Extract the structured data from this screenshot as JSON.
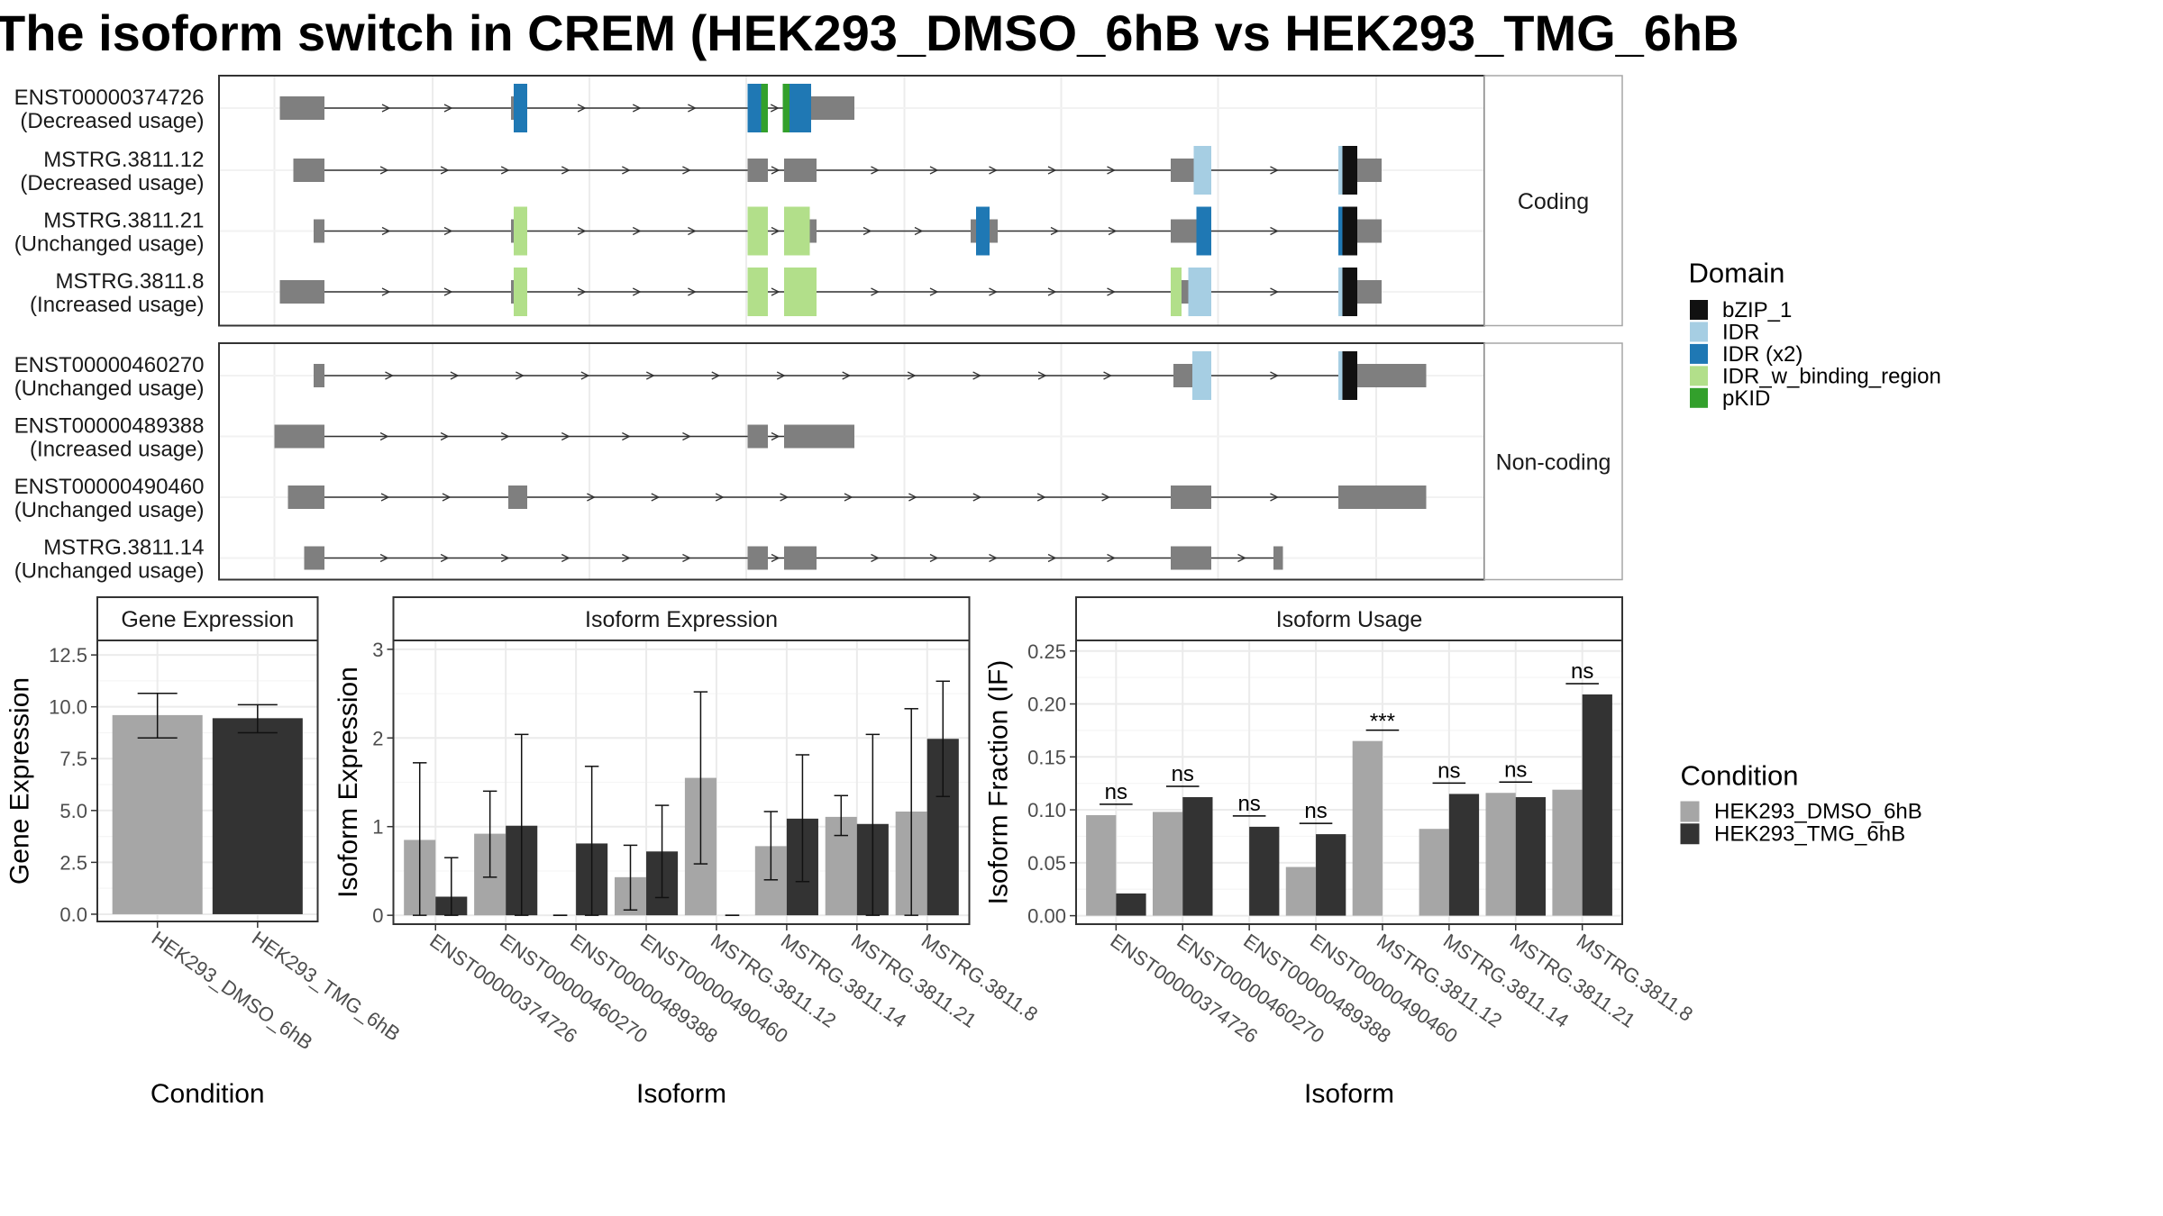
{
  "title": "The isoform switch in CREM (HEK293_DMSO_6hB vs HEK293_TMG_6hB",
  "colors": {
    "exon": "#7f7f7f",
    "bZIP_1": "#111111",
    "IDR": "#a6cee3",
    "IDR (x2)": "#1f78b4",
    "IDR_w_binding_region": "#b2df8a",
    "pKID": "#33a02c",
    "cond1": "#a6a6a6",
    "cond2": "#333333"
  },
  "domain_legend": {
    "title": "Domain",
    "items": [
      "bZIP_1",
      "IDR",
      "IDR (x2)",
      "IDR_w_binding_region",
      "pKID"
    ]
  },
  "condition_legend": {
    "title": "Condition",
    "items": [
      "HEK293_DMSO_6hB",
      "HEK293_TMG_6hB"
    ]
  },
  "structure": {
    "groups": [
      {
        "label": "Coding",
        "isoforms": [
          {
            "id": "ENST00000374726",
            "usage": "(Decreased usage)",
            "exons": [
              [
                207,
                240
              ],
              [
                378,
                390
              ],
              [
                553,
                568
              ],
              [
                579,
                600
              ],
              [
                600,
                632
              ]
            ],
            "domains": [
              [
                380,
                390,
                "IDR (x2)"
              ],
              [
                553,
                563,
                "IDR (x2)"
              ],
              [
                563,
                568,
                "pKID"
              ],
              [
                579,
                584,
                "pKID"
              ],
              [
                584,
                600,
                "IDR (x2)"
              ]
            ]
          },
          {
            "id": "MSTRG.3811.12",
            "usage": "(Decreased usage)",
            "exons": [
              [
                217,
                240
              ],
              [
                553,
                568
              ],
              [
                580,
                604
              ],
              [
                866,
                896
              ],
              [
                990,
                1022
              ]
            ],
            "domains": [
              [
                883,
                896,
                "IDR"
              ],
              [
                990,
                993,
                "IDR"
              ],
              [
                993,
                1004,
                "bZIP_1"
              ]
            ]
          },
          {
            "id": "MSTRG.3811.21",
            "usage": "(Unchanged usage)",
            "exons": [
              [
                232,
                240
              ],
              [
                378,
                390
              ],
              [
                553,
                568
              ],
              [
                580,
                604
              ],
              [
                718,
                738
              ],
              [
                866,
                896
              ],
              [
                990,
                1022
              ]
            ],
            "domains": [
              [
                380,
                390,
                "IDR_w_binding_region"
              ],
              [
                553,
                568,
                "IDR_w_binding_region"
              ],
              [
                580,
                599,
                "IDR_w_binding_region"
              ],
              [
                722,
                732,
                "IDR (x2)"
              ],
              [
                885,
                896,
                "IDR (x2)"
              ],
              [
                990,
                993,
                "IDR (x2)"
              ],
              [
                993,
                1004,
                "bZIP_1"
              ]
            ]
          },
          {
            "id": "MSTRG.3811.8",
            "usage": "(Increased usage)",
            "exons": [
              [
                207,
                240
              ],
              [
                378,
                390
              ],
              [
                553,
                568
              ],
              [
                580,
                604
              ],
              [
                866,
                896
              ],
              [
                990,
                1022
              ]
            ],
            "domains": [
              [
                380,
                390,
                "IDR_w_binding_region"
              ],
              [
                553,
                568,
                "IDR_w_binding_region"
              ],
              [
                580,
                604,
                "IDR_w_binding_region"
              ],
              [
                866,
                874,
                "IDR_w_binding_region"
              ],
              [
                879,
                896,
                "IDR"
              ],
              [
                990,
                993,
                "IDR"
              ],
              [
                993,
                1004,
                "bZIP_1"
              ]
            ]
          }
        ]
      },
      {
        "label": "Non-coding",
        "isoforms": [
          {
            "id": "ENST00000460270",
            "usage": "(Unchanged usage)",
            "exons": [
              [
                232,
                240
              ],
              [
                868,
                896
              ],
              [
                990,
                1055
              ]
            ],
            "domains": [
              [
                882,
                896,
                "IDR"
              ],
              [
                990,
                993,
                "IDR"
              ],
              [
                993,
                1004,
                "bZIP_1"
              ]
            ]
          },
          {
            "id": "ENST00000489388",
            "usage": "(Increased usage)",
            "exons": [
              [
                203,
                240
              ],
              [
                553,
                568
              ],
              [
                580,
                632
              ]
            ],
            "domains": []
          },
          {
            "id": "ENST00000490460",
            "usage": "(Unchanged usage)",
            "exons": [
              [
                213,
                240
              ],
              [
                376,
                390
              ],
              [
                866,
                896
              ],
              [
                990,
                1055
              ]
            ],
            "domains": []
          },
          {
            "id": "MSTRG.3811.14",
            "usage": "(Unchanged usage)",
            "exons": [
              [
                225,
                240
              ],
              [
                553,
                568
              ],
              [
                580,
                604
              ],
              [
                866,
                896
              ],
              [
                942,
                949
              ]
            ],
            "domains": []
          }
        ]
      }
    ]
  },
  "chart_data": [
    {
      "type": "bar",
      "title": "Gene Expression",
      "xlabel": "Condition",
      "ylabel": "Gene Expression",
      "categories": [
        "HEK293_DMSO_6hB",
        "HEK293_TMG_6hB"
      ],
      "values": [
        9.6,
        9.45
      ],
      "error_low": [
        8.5,
        8.75
      ],
      "error_high": [
        10.65,
        10.1
      ],
      "ylim": [
        -0.35,
        13.2
      ],
      "yticks": [
        "0.0",
        "2.5",
        "5.0",
        "7.5",
        "10.0",
        "12.5"
      ],
      "grid": true
    },
    {
      "type": "bar",
      "title": "Isoform Expression",
      "xlabel": "Isoform",
      "ylabel": "Isoform Expression",
      "categories": [
        "ENST00000374726",
        "ENST00000460270",
        "ENST00000489388",
        "ENST00000490460",
        "MSTRG.3811.12",
        "MSTRG.3811.14",
        "MSTRG.3811.21",
        "MSTRG.3811.8"
      ],
      "series": [
        {
          "name": "HEK293_DMSO_6hB",
          "values": [
            0.85,
            0.92,
            0,
            0.43,
            1.55,
            0.78,
            1.11,
            1.17
          ],
          "error_low": [
            0,
            0.43,
            0,
            0.06,
            0.58,
            0.4,
            0.9,
            0
          ],
          "error_high": [
            1.72,
            1.4,
            0,
            0.79,
            2.52,
            1.17,
            1.35,
            2.33
          ]
        },
        {
          "name": "HEK293_TMG_6hB",
          "values": [
            0.21,
            1.01,
            0.81,
            0.72,
            0,
            1.09,
            1.03,
            1.99
          ],
          "error_low": [
            0,
            0,
            0,
            0.2,
            0,
            0.38,
            0,
            1.34
          ],
          "error_high": [
            0.65,
            2.04,
            1.68,
            1.24,
            0,
            1.81,
            2.04,
            2.64
          ]
        }
      ],
      "ylim": [
        -0.1,
        3.1
      ],
      "yticks": [
        "0",
        "1",
        "2",
        "3"
      ],
      "grid": true
    },
    {
      "type": "bar",
      "title": "Isoform Usage",
      "xlabel": "Isoform",
      "ylabel": "Isoform Fraction (IF)",
      "categories": [
        "ENST00000374726",
        "ENST00000460270",
        "ENST00000489388",
        "ENST00000490460",
        "MSTRG.3811.12",
        "MSTRG.3811.14",
        "MSTRG.3811.21",
        "MSTRG.3811.8"
      ],
      "series": [
        {
          "name": "HEK293_DMSO_6hB",
          "values": [
            0.095,
            0.098,
            0,
            0.046,
            0.165,
            0.082,
            0.116,
            0.119
          ]
        },
        {
          "name": "HEK293_TMG_6hB",
          "values": [
            0.021,
            0.112,
            0.084,
            0.077,
            0,
            0.115,
            0.112,
            0.209
          ]
        }
      ],
      "significance": [
        "ns",
        "ns",
        "ns",
        "ns",
        "***",
        "ns",
        "ns",
        "ns"
      ],
      "ylim": [
        -0.008,
        0.26
      ],
      "yticks": [
        "0.00",
        "0.05",
        "0.10",
        "0.15",
        "0.20",
        "0.25"
      ],
      "grid": true
    }
  ]
}
